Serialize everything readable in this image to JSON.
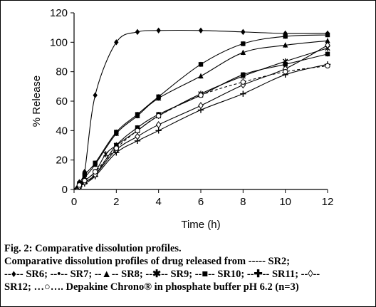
{
  "chart_data": {
    "type": "line",
    "xlabel": "Time (h)",
    "ylabel": "% Release",
    "xlim": [
      0,
      12
    ],
    "ylim": [
      0,
      120
    ],
    "xticks": [
      0,
      2,
      4,
      6,
      8,
      10,
      12
    ],
    "yticks": [
      0,
      20,
      40,
      60,
      80,
      100,
      120
    ],
    "grid": false,
    "series": [
      {
        "marker": "diamond",
        "dash": "solid",
        "x": [
          0,
          0.25,
          0.5,
          1,
          2,
          3,
          4,
          6,
          8,
          10,
          12
        ],
        "y": [
          0,
          5,
          12,
          64,
          100,
          107,
          108,
          108,
          107,
          106,
          106
        ]
      },
      {
        "marker": "square",
        "dash": "solid",
        "x": [
          0,
          0.25,
          0.5,
          1,
          2,
          3,
          4,
          6,
          8,
          10,
          12
        ],
        "y": [
          0,
          4,
          10,
          18,
          39,
          51,
          63,
          85,
          99,
          104,
          105
        ]
      },
      {
        "marker": "triangle",
        "dash": "solid",
        "x": [
          0,
          0.25,
          0.5,
          1,
          2,
          3,
          4,
          6,
          8,
          10,
          12
        ],
        "y": [
          0,
          3,
          8,
          17,
          38,
          50,
          62,
          77,
          93,
          98,
          101
        ]
      },
      {
        "marker": "x",
        "dash": "solid",
        "x": [
          0,
          0.25,
          0.5,
          1,
          1.5,
          2,
          3,
          4,
          6,
          8,
          10,
          12
        ],
        "y": [
          0,
          3,
          6,
          12,
          24,
          30,
          40,
          50,
          65,
          77,
          87,
          96
        ]
      },
      {
        "marker": "square",
        "dash": "solid",
        "x": [
          0,
          0.25,
          0.5,
          1,
          2,
          3,
          4,
          6,
          8,
          10,
          12
        ],
        "y": [
          0,
          2,
          5,
          10,
          30,
          42,
          51,
          64,
          78,
          85,
          92
        ]
      },
      {
        "marker": "plus",
        "dash": "solid",
        "x": [
          0,
          0.25,
          0.5,
          1,
          2,
          3,
          4,
          6,
          8,
          10,
          12
        ],
        "y": [
          0,
          2,
          4,
          9,
          25,
          33,
          40,
          54,
          65,
          78,
          85
        ]
      },
      {
        "marker": "open-diamond",
        "dash": "solid",
        "x": [
          0,
          0.25,
          0.5,
          1,
          2,
          3,
          4,
          6,
          8,
          10,
          12
        ],
        "y": [
          0,
          2,
          5,
          10,
          27,
          36,
          44,
          57,
          71,
          82,
          98
        ]
      },
      {
        "marker": "open-circle",
        "dash": "dashed",
        "x": [
          0,
          0.25,
          0.5,
          1,
          2,
          3,
          4,
          6,
          8,
          10,
          12
        ],
        "y": [
          0,
          3,
          6,
          12,
          28,
          40,
          50,
          64,
          73,
          80,
          84
        ]
      }
    ]
  },
  "caption": {
    "line1": "Fig. 2: Comparative dissolution profiles.",
    "line2": "Comparative dissolution profiles of drug released from ----- SR2;",
    "line3": "--♦-- SR6; --•-- SR7; --▲-- SR8; --✱-- SR9; --■-- SR10; --✚-- SR11; --◊--",
    "line4": "SR12; …○…. Depakine Chrono® in phosphate buffer pH 6.2 (n=3)"
  }
}
